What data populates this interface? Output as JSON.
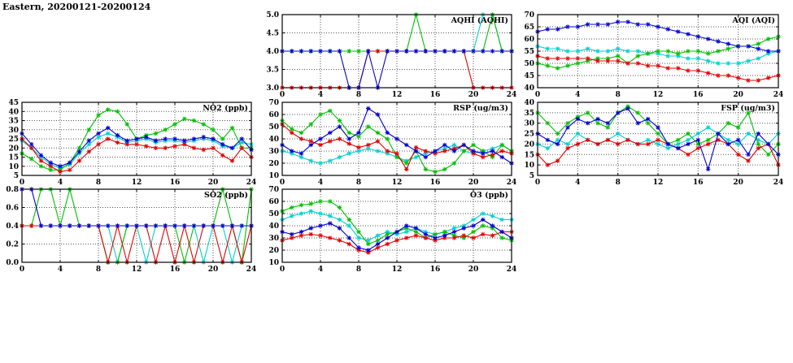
{
  "header": {
    "title": "Eastern, 20200121-20200124"
  },
  "colors": {
    "red": "#e00000",
    "green": "#00c000",
    "blue": "#0000d0",
    "cyan": "#00d0d0"
  },
  "chart_data": [
    {
      "id": "aqhi",
      "type": "line",
      "title": "AQHI (AQHI)",
      "xlim": [
        0,
        24
      ],
      "xticks": [
        0,
        4,
        8,
        12,
        16,
        20,
        24
      ],
      "x_start": 0,
      "x_step": 1,
      "ylim": [
        3,
        5
      ],
      "yticks": [
        3,
        3.5,
        4,
        4.5,
        5
      ],
      "ytick_labels": [
        "3.0",
        "3.5",
        "4.0",
        "4.5",
        "5.0"
      ],
      "series": [
        {
          "name": "cyan",
          "color": "#00d0d0",
          "values": [
            4,
            4,
            4,
            4,
            4,
            4,
            4,
            4,
            4,
            4,
            4,
            4,
            4,
            4,
            4,
            4,
            4,
            4,
            4,
            4,
            4,
            5,
            5,
            4,
            4
          ]
        },
        {
          "name": "green",
          "color": "#00c000",
          "values": [
            4,
            4,
            4,
            4,
            4,
            4,
            4,
            4,
            4,
            4,
            4,
            4,
            4,
            4,
            5,
            4,
            4,
            4,
            4,
            4,
            4,
            4,
            5,
            4,
            4
          ]
        },
        {
          "name": "red",
          "color": "#e00000",
          "values": [
            3,
            3,
            3,
            3,
            3,
            3,
            3,
            3,
            3,
            4,
            4,
            4,
            4,
            4,
            4,
            4,
            4,
            4,
            4,
            4,
            3,
            3,
            3,
            3,
            3
          ]
        },
        {
          "name": "blue",
          "color": "#0000d0",
          "values": [
            4,
            4,
            4,
            4,
            4,
            4,
            4,
            3,
            3,
            4,
            3,
            4,
            4,
            4,
            4,
            4,
            4,
            4,
            4,
            4,
            4,
            4,
            4,
            4,
            4
          ]
        }
      ]
    },
    {
      "id": "aqi",
      "type": "line",
      "title": "AQI (AQI)",
      "xlim": [
        0,
        24
      ],
      "xticks": [
        0,
        4,
        8,
        12,
        16,
        20,
        24
      ],
      "x_start": 0,
      "x_step": 1,
      "ylim": [
        40,
        70
      ],
      "yticks": [
        40,
        45,
        50,
        55,
        60,
        65,
        70
      ],
      "ytick_labels": [
        "40",
        "45",
        "50",
        "55",
        "60",
        "65",
        "70"
      ],
      "series": [
        {
          "name": "cyan",
          "color": "#00d0d0",
          "values": [
            57,
            56,
            56,
            55,
            55,
            56,
            55,
            55,
            56,
            55,
            55,
            54,
            54,
            53,
            53,
            52,
            52,
            51,
            50,
            50,
            50,
            51,
            52,
            54,
            55
          ]
        },
        {
          "name": "green",
          "color": "#00c000",
          "values": [
            50,
            49,
            48,
            49,
            50,
            51,
            52,
            52,
            53,
            50,
            53,
            54,
            55,
            55,
            54,
            55,
            55,
            54,
            55,
            56,
            57,
            57,
            58,
            60,
            61
          ]
        },
        {
          "name": "red",
          "color": "#e00000",
          "values": [
            53,
            52,
            52,
            52,
            52,
            52,
            51,
            51,
            51,
            50,
            50,
            49,
            49,
            48,
            48,
            47,
            47,
            46,
            45,
            45,
            44,
            43,
            43,
            44,
            45
          ]
        },
        {
          "name": "blue",
          "color": "#0000d0",
          "values": [
            63,
            64,
            64,
            65,
            65,
            66,
            66,
            66,
            67,
            67,
            66,
            66,
            65,
            64,
            63,
            62,
            61,
            60,
            59,
            58,
            57,
            57,
            56,
            55,
            55
          ]
        }
      ]
    },
    {
      "id": "no2",
      "type": "line",
      "title": "NO2 (ppb)",
      "xlim": [
        0,
        24
      ],
      "xticks": [
        0,
        4,
        8,
        12,
        16,
        20,
        24
      ],
      "x_start": 0,
      "x_step": 1,
      "ylim": [
        5,
        45
      ],
      "yticks": [
        5,
        10,
        15,
        20,
        25,
        30,
        35,
        40,
        45
      ],
      "ytick_labels": [
        "5",
        "10",
        "15",
        "20",
        "25",
        "30",
        "35",
        "40",
        "45"
      ],
      "series": [
        {
          "name": "cyan",
          "color": "#00d0d0",
          "values": [
            24,
            20,
            15,
            11,
            9,
            11,
            17,
            22,
            26,
            28,
            26,
            23,
            24,
            25,
            23,
            24,
            24,
            23,
            24,
            25,
            24,
            21,
            20,
            23,
            22
          ]
        },
        {
          "name": "green",
          "color": "#00c000",
          "values": [
            17,
            14,
            10,
            8,
            8,
            12,
            20,
            30,
            38,
            41,
            40,
            33,
            25,
            27,
            28,
            30,
            33,
            36,
            35,
            33,
            30,
            25,
            31,
            20,
            20
          ]
        },
        {
          "name": "red",
          "color": "#e00000",
          "values": [
            25,
            20,
            13,
            10,
            7,
            8,
            13,
            18,
            22,
            25,
            23,
            22,
            22,
            21,
            20,
            20,
            21,
            22,
            20,
            19,
            20,
            16,
            13,
            20,
            15
          ]
        },
        {
          "name": "blue",
          "color": "#0000d0",
          "values": [
            28,
            22,
            16,
            12,
            10,
            12,
            18,
            24,
            28,
            31,
            27,
            24,
            25,
            26,
            24,
            25,
            25,
            24,
            25,
            26,
            25,
            22,
            20,
            25,
            19
          ]
        }
      ]
    },
    {
      "id": "rsp",
      "type": "line",
      "title": "RSP (ug/m3)",
      "xlim": [
        0,
        24
      ],
      "xticks": [
        0,
        4,
        8,
        12,
        16,
        20,
        24
      ],
      "x_start": 0,
      "x_step": 1,
      "ylim": [
        10,
        70
      ],
      "yticks": [
        10,
        20,
        30,
        40,
        50,
        60,
        70
      ],
      "ytick_labels": [
        "10",
        "20",
        "30",
        "40",
        "50",
        "60",
        "70"
      ],
      "series": [
        {
          "name": "cyan",
          "color": "#00d0d0",
          "values": [
            30,
            28,
            25,
            22,
            20,
            22,
            25,
            28,
            30,
            32,
            30,
            28,
            25,
            22,
            25,
            28,
            30,
            32,
            35,
            30,
            28,
            30,
            32,
            35,
            30
          ]
        },
        {
          "name": "green",
          "color": "#00c000",
          "values": [
            55,
            48,
            45,
            52,
            60,
            63,
            55,
            45,
            42,
            50,
            45,
            40,
            25,
            20,
            30,
            15,
            13,
            15,
            20,
            30,
            35,
            30,
            25,
            35,
            30
          ]
        },
        {
          "name": "red",
          "color": "#e00000",
          "values": [
            52,
            45,
            40,
            38,
            35,
            38,
            40,
            36,
            33,
            35,
            38,
            30,
            28,
            15,
            33,
            30,
            28,
            30,
            32,
            35,
            28,
            25,
            27,
            30,
            28
          ]
        },
        {
          "name": "blue",
          "color": "#0000d0",
          "values": [
            35,
            30,
            28,
            35,
            40,
            45,
            50,
            40,
            45,
            65,
            60,
            45,
            40,
            35,
            30,
            25,
            30,
            35,
            30,
            35,
            30,
            28,
            30,
            25,
            20
          ]
        }
      ]
    },
    {
      "id": "fsp",
      "type": "line",
      "title": "FSP (ug/m3)",
      "xlim": [
        0,
        24
      ],
      "xticks": [
        0,
        4,
        8,
        12,
        16,
        20,
        24
      ],
      "x_start": 0,
      "x_step": 1,
      "ylim": [
        5,
        40
      ],
      "yticks": [
        5,
        10,
        15,
        20,
        25,
        30,
        35,
        40
      ],
      "ytick_labels": [
        "5",
        "10",
        "15",
        "20",
        "25",
        "30",
        "35",
        "40"
      ],
      "series": [
        {
          "name": "cyan",
          "color": "#00d0d0",
          "values": [
            20,
            18,
            22,
            20,
            25,
            22,
            20,
            22,
            25,
            22,
            20,
            22,
            20,
            18,
            20,
            22,
            25,
            28,
            25,
            22,
            20,
            25,
            22,
            20,
            25
          ]
        },
        {
          "name": "green",
          "color": "#00c000",
          "values": [
            35,
            30,
            25,
            30,
            33,
            35,
            30,
            28,
            35,
            38,
            35,
            30,
            25,
            20,
            22,
            25,
            20,
            22,
            25,
            30,
            28,
            35,
            20,
            15,
            20
          ]
        },
        {
          "name": "red",
          "color": "#e00000",
          "values": [
            15,
            10,
            12,
            18,
            20,
            22,
            20,
            22,
            20,
            22,
            20,
            20,
            22,
            20,
            18,
            15,
            18,
            20,
            22,
            20,
            15,
            12,
            18,
            20,
            10
          ]
        },
        {
          "name": "blue",
          "color": "#0000d0",
          "values": [
            25,
            22,
            20,
            28,
            32,
            30,
            32,
            30,
            35,
            37,
            30,
            32,
            28,
            20,
            18,
            20,
            22,
            8,
            25,
            20,
            22,
            15,
            25,
            20,
            15
          ]
        }
      ]
    },
    {
      "id": "so2",
      "type": "line",
      "title": "SO2 (ppb)",
      "xlim": [
        0,
        24
      ],
      "xticks": [
        0,
        4,
        8,
        12,
        16,
        20,
        24
      ],
      "x_start": 0,
      "x_step": 1,
      "ylim": [
        0,
        0.8
      ],
      "yticks": [
        0,
        0.2,
        0.4,
        0.6,
        0.8
      ],
      "ytick_labels": [
        "0.0",
        "0.2",
        "0.4",
        "0.6",
        "0.8"
      ],
      "series": [
        {
          "name": "cyan",
          "color": "#00d0d0",
          "values": [
            0.4,
            0.4,
            0.4,
            0.4,
            0.4,
            0.4,
            0.4,
            0.4,
            0.4,
            0.4,
            0.0,
            0.4,
            0.4,
            0.0,
            0.4,
            0.4,
            0.4,
            0.4,
            0.4,
            0.0,
            0.4,
            0.4,
            0.0,
            0.4,
            0.4
          ]
        },
        {
          "name": "green",
          "color": "#00c000",
          "values": [
            0.4,
            0.4,
            0.8,
            0.8,
            0.4,
            0.8,
            0.4,
            0.4,
            0.4,
            0.0,
            0.0,
            0.4,
            0.4,
            0.4,
            0.4,
            0.4,
            0.4,
            0.0,
            0.4,
            0.4,
            0.4,
            0.8,
            0.4,
            0.0,
            0.8
          ]
        },
        {
          "name": "red",
          "color": "#e00000",
          "values": [
            0.4,
            0.4,
            0.4,
            0.4,
            0.4,
            0.4,
            0.4,
            0.4,
            0.4,
            0.0,
            0.4,
            0.0,
            0.4,
            0.4,
            0.0,
            0.4,
            0.0,
            0.4,
            0.0,
            0.4,
            0.4,
            0.0,
            0.4,
            0.0,
            0.4
          ]
        },
        {
          "name": "blue",
          "color": "#0000d0",
          "values": [
            0.8,
            0.8,
            0.4,
            0.4,
            0.4,
            0.4,
            0.4,
            0.4,
            0.4,
            0.4,
            0.4,
            0.4,
            0.4,
            0.4,
            0.4,
            0.4,
            0.4,
            0.4,
            0.4,
            0.4,
            0.4,
            0.4,
            0.4,
            0.4,
            0.4
          ]
        }
      ]
    },
    {
      "id": "o3",
      "type": "line",
      "title": "O3 (ppb)",
      "xlim": [
        0,
        24
      ],
      "xticks": [
        0,
        4,
        8,
        12,
        16,
        20,
        24
      ],
      "x_start": 0,
      "x_step": 1,
      "ylim": [
        10,
        70
      ],
      "yticks": [
        10,
        20,
        30,
        40,
        50,
        60,
        70
      ],
      "ytick_labels": [
        "10",
        "20",
        "30",
        "40",
        "50",
        "60",
        "70"
      ],
      "series": [
        {
          "name": "cyan",
          "color": "#00d0d0",
          "values": [
            45,
            48,
            50,
            52,
            50,
            48,
            45,
            40,
            30,
            28,
            32,
            35,
            33,
            35,
            38,
            35,
            33,
            35,
            38,
            40,
            45,
            50,
            48,
            45,
            45
          ]
        },
        {
          "name": "green",
          "color": "#00c000",
          "values": [
            52,
            55,
            57,
            58,
            60,
            60,
            55,
            45,
            35,
            25,
            28,
            33,
            35,
            38,
            35,
            30,
            33,
            35,
            32,
            30,
            35,
            40,
            38,
            30,
            28
          ]
        },
        {
          "name": "red",
          "color": "#e00000",
          "values": [
            28,
            30,
            32,
            33,
            32,
            30,
            28,
            25,
            20,
            18,
            22,
            25,
            28,
            30,
            32,
            30,
            28,
            30,
            30,
            32,
            30,
            33,
            32,
            35,
            35
          ]
        },
        {
          "name": "blue",
          "color": "#0000d0",
          "values": [
            35,
            33,
            35,
            38,
            40,
            42,
            38,
            30,
            22,
            20,
            25,
            30,
            35,
            40,
            38,
            33,
            30,
            32,
            35,
            38,
            40,
            45,
            40,
            35,
            30
          ]
        }
      ]
    }
  ]
}
